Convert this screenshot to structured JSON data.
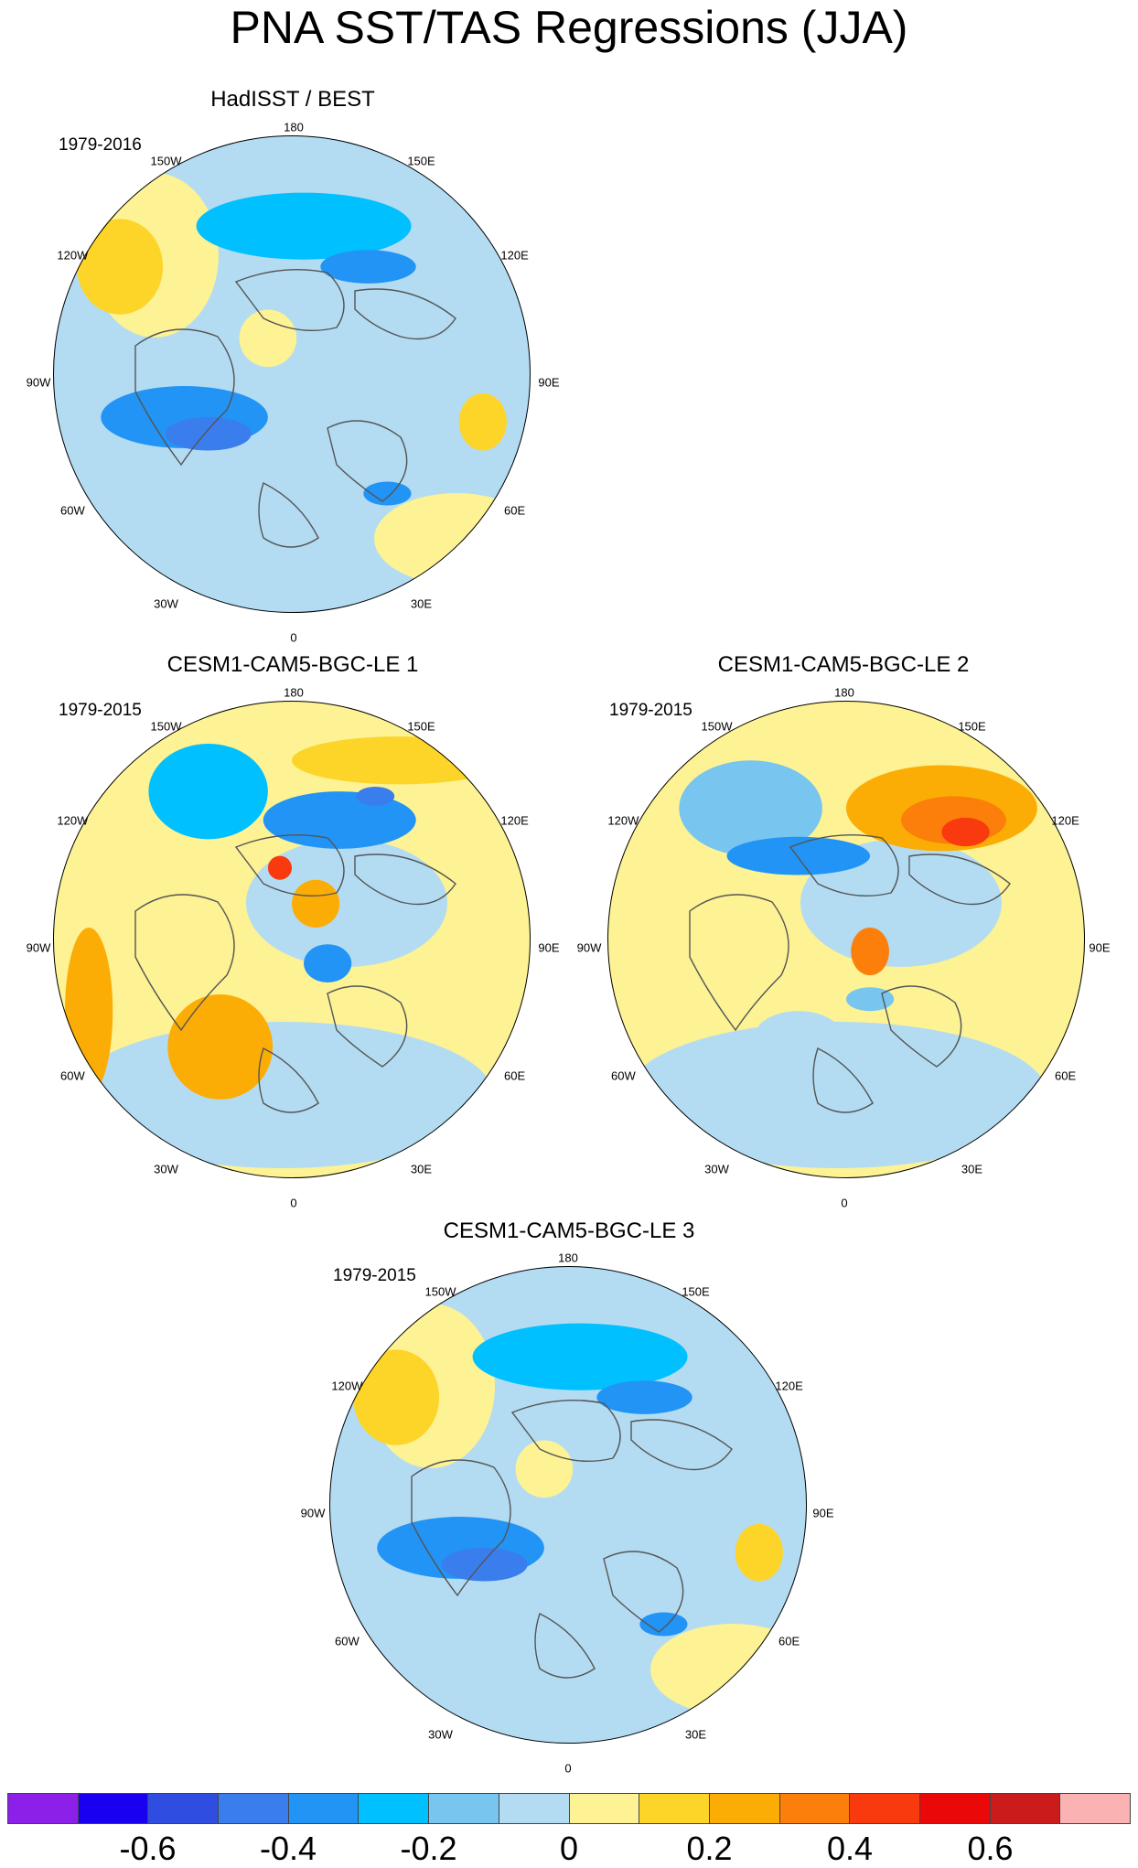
{
  "title": "PNA SST/TAS Regressions (JJA)",
  "panels": [
    {
      "title": "HadISST / BEST",
      "period": "1979-2016",
      "dominant": "blue"
    },
    {
      "title": "CESM1-CAM5-BGC-LE 1",
      "period": "1979-2015",
      "dominant": "mixed"
    },
    {
      "title": "CESM1-CAM5-BGC-LE 2",
      "period": "1979-2015",
      "dominant": "warm"
    },
    {
      "title": "CESM1-CAM5-BGC-LE 3",
      "period": "1979-2015",
      "dominant": "blue"
    }
  ],
  "longitude_labels": [
    "180",
    "150E",
    "120E",
    "90E",
    "60E",
    "30E",
    "0",
    "30W",
    "60W",
    "90W",
    "120W",
    "150W"
  ],
  "colorbar": {
    "colors": [
      "#8c1fe8",
      "#1a00f0",
      "#2f4de0",
      "#3a7ded",
      "#2294f5",
      "#00c0ff",
      "#78c5f0",
      "#b3dcf2",
      "#fdf294",
      "#fdd428",
      "#fbad06",
      "#fb7f0a",
      "#f9390e",
      "#ea0808",
      "#cc1b1b",
      "#fbb2b2"
    ],
    "labels": [
      "-0.6",
      "-0.4",
      "-0.2",
      "0",
      "0.2",
      "0.4",
      "0.6"
    ]
  }
}
